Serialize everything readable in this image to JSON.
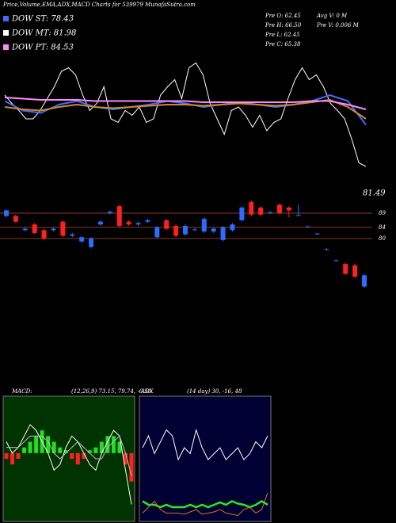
{
  "header": {
    "title": "Price,Volume,EMA,ADX,MACD Charts for 539979 MunafaSutra.com"
  },
  "legend": [
    {
      "label": "DOW ST: 78.43",
      "color": "#3f6dff"
    },
    {
      "label": "DOW MT: 81.98",
      "color": "#ffffff"
    },
    {
      "label": "DOW PT: 84.53",
      "color": "#ff88ff"
    }
  ],
  "price_info": [
    "Pre O: 62.45",
    "Pre H: 66.50",
    "Pre L: 62.45",
    "Pre C: 65.38",
    "Avg V: 0 M",
    "Pre V: 0.006 M"
  ],
  "chart_data": [
    {
      "type": "line",
      "ylim": [
        0,
        100
      ],
      "series": [
        {
          "name": null,
          "color": "#ffffff",
          "values": [
            60,
            53,
            47,
            40,
            40,
            47,
            57,
            67,
            80,
            83,
            77,
            60,
            47,
            53,
            67,
            40,
            37,
            47,
            43,
            50,
            37,
            40,
            60,
            67,
            73,
            57,
            83,
            87,
            77,
            53,
            40,
            27,
            47,
            50,
            43,
            33,
            43,
            30,
            37,
            40,
            57,
            73,
            83,
            73,
            77,
            67,
            53,
            47,
            40,
            23,
            3,
            0
          ]
        },
        {
          "name": null,
          "color": "#3f6dff",
          "values": [
            55,
            47,
            45,
            52,
            55,
            50,
            48,
            50,
            52,
            55,
            53,
            50,
            52,
            54,
            52,
            50,
            52,
            55,
            60,
            55,
            35
          ]
        },
        {
          "name": null,
          "color": "#d08a2a",
          "values": [
            50,
            48,
            47,
            50,
            52,
            50,
            49,
            50,
            51,
            52,
            52,
            51,
            52,
            53,
            52,
            51,
            52,
            54,
            56,
            50,
            40
          ]
        },
        {
          "name": null,
          "color": "#ff88ff",
          "values": [
            58,
            57,
            56,
            56,
            56,
            55,
            55,
            55,
            55,
            55,
            55,
            54,
            54,
            54,
            54,
            54,
            54,
            55,
            55,
            52,
            48
          ]
        }
      ]
    },
    {
      "type": "candlestick",
      "ylim": [
        30,
        98
      ],
      "yticks": [
        80,
        84,
        89
      ],
      "annotation": "81.49",
      "up_color": "#2d6cff",
      "down_color": "#ff2020",
      "open": [
        88,
        88,
        83,
        85,
        83,
        83,
        86,
        81,
        79,
        77,
        85,
        89,
        91.5,
        86,
        85,
        86,
        80.5,
        86.5,
        84.5,
        81.5,
        83,
        82.5,
        82.5,
        79.5,
        83,
        86.5,
        93,
        91,
        89,
        92,
        91,
        88,
        84,
        81.5,
        76,
        72,
        71,
        70.5,
        63
      ],
      "close": [
        90,
        86,
        83.5,
        82,
        80,
        83.5,
        81,
        81.5,
        80.5,
        80,
        86,
        89.5,
        84.5,
        85,
        85.5,
        86.5,
        84,
        83.5,
        81,
        84.5,
        83.3,
        87,
        83.5,
        84,
        85,
        91,
        88.5,
        88.5,
        89.3,
        89,
        90,
        88.3,
        84.3,
        81.8,
        76.3,
        72.3,
        67.5,
        66.5,
        67
      ],
      "high": [
        90.5,
        88.5,
        84,
        85.5,
        83.5,
        84,
        86.5,
        82,
        81,
        80.5,
        86.5,
        90,
        92,
        86.5,
        86,
        87,
        84.5,
        87,
        85,
        85,
        83.8,
        87.5,
        84,
        84.5,
        85.5,
        91.5,
        93.5,
        91.5,
        89.8,
        92.5,
        91.5,
        92,
        84.6,
        82,
        76.6,
        72.6,
        71.5,
        71,
        67.5
      ],
      "low": [
        87.5,
        85.5,
        82.5,
        81.5,
        79.5,
        82.5,
        80.5,
        80.5,
        78.5,
        76.5,
        84.5,
        88.5,
        84,
        84.5,
        84.5,
        85.5,
        80,
        83,
        80.5,
        81,
        82.7,
        82,
        82,
        79,
        82.5,
        86,
        88,
        88,
        88.7,
        88.5,
        87.5,
        88,
        83.9,
        81.3,
        75.9,
        71.9,
        67,
        66,
        62.5
      ]
    },
    {
      "type": "macd",
      "label": "MACD:",
      "values_text": "(12,26,9) 73.15, 79.74, -6.59",
      "ylim": [
        -12,
        10
      ],
      "histogram": [
        -1,
        -2,
        -1,
        1,
        2,
        3,
        4,
        3,
        2,
        1,
        0.5,
        -1,
        -2,
        -1,
        0.5,
        1,
        2,
        3,
        3,
        2,
        -2,
        -5
      ],
      "series": [
        {
          "name": null,
          "color": "#ffffff",
          "values": [
            2,
            0,
            1,
            3,
            5,
            4,
            2,
            0,
            -3,
            -2,
            1,
            3,
            2,
            0,
            -2,
            -3,
            0,
            2,
            4,
            3,
            -3,
            -9
          ]
        },
        {
          "name": null,
          "color": "#bbbbbb",
          "values": [
            1,
            1,
            1,
            2,
            3,
            3,
            3,
            2,
            0,
            -1,
            0,
            1,
            2,
            1,
            0,
            -1,
            -1,
            1,
            2,
            3,
            0,
            -4
          ]
        }
      ],
      "pos_color": "#22dd22",
      "neg_color": "#ff2020"
    },
    {
      "type": "adx",
      "label": "ADX",
      "values_text": "(14 day) 30, -16, 48",
      "ylim": [
        0,
        100
      ],
      "series": [
        {
          "name": null,
          "color": "#ffffff",
          "values": [
            60,
            70,
            55,
            65,
            75,
            70,
            50,
            60,
            55,
            75,
            60,
            50,
            55,
            60,
            50,
            55,
            60,
            50,
            55,
            65,
            60,
            70
          ]
        },
        {
          "name": null,
          "color": "#22ee22",
          "values": [
            15,
            12,
            12,
            10,
            12,
            10,
            10,
            10,
            12,
            10,
            12,
            10,
            12,
            14,
            12,
            15,
            13,
            12,
            10,
            12,
            15,
            12
          ]
        },
        {
          "name": null,
          "color": "#e07020",
          "values": [
            5,
            10,
            15,
            8,
            5,
            5,
            5,
            4,
            6,
            8,
            4,
            5,
            6,
            8,
            5,
            4,
            3,
            8,
            10,
            5,
            8,
            22
          ]
        }
      ]
    }
  ]
}
